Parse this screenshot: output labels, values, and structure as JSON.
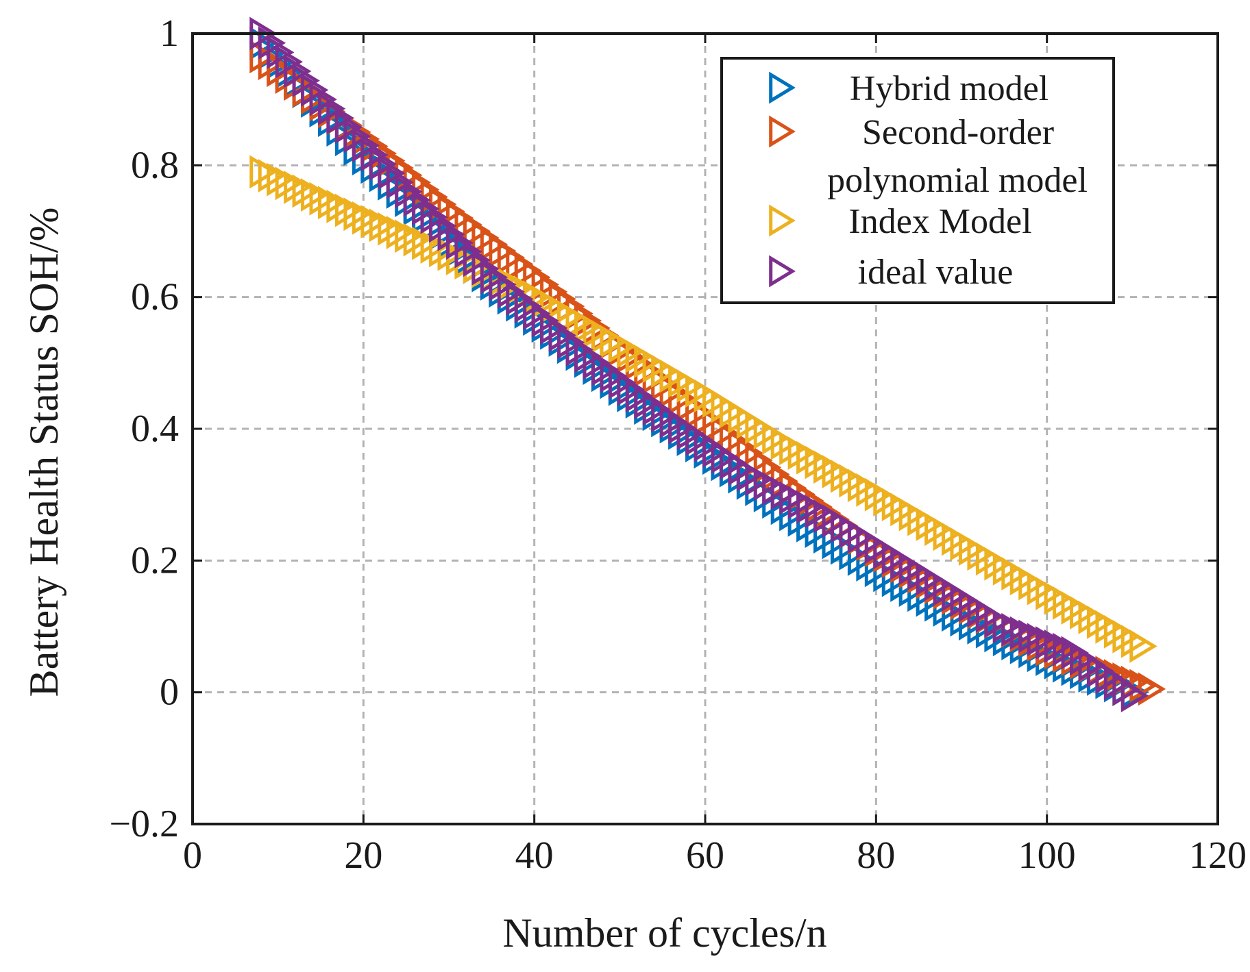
{
  "chart_data": {
    "type": "scatter",
    "title": "",
    "xlabel": "Number of cycles/n",
    "ylabel": "Battery Health Status SOH/%",
    "xlim": [
      0,
      120
    ],
    "ylim": [
      -0.2,
      1
    ],
    "xticks": [
      0,
      20,
      40,
      60,
      80,
      100,
      120
    ],
    "xtick_labels": [
      "0",
      "20",
      "40",
      "60",
      "80",
      "100",
      "120"
    ],
    "yticks": [
      -0.2,
      0,
      0.2,
      0.4,
      0.6,
      0.8,
      1
    ],
    "ytick_labels": [
      "−0.2",
      "0",
      "0.2",
      "0.4",
      "0.6",
      "0.8",
      "1"
    ],
    "grid": true,
    "legend_position": "top-right",
    "marker": "triangle-right",
    "series": [
      {
        "name": "Hybrid model",
        "color": "#0072BD",
        "x_start": 8,
        "x_end": 110,
        "x_step": 1,
        "points": [
          [
            8,
            0.985
          ],
          [
            20,
            0.81
          ],
          [
            35,
            0.62
          ],
          [
            50,
            0.46
          ],
          [
            60,
            0.365
          ],
          [
            70,
            0.27
          ],
          [
            80,
            0.185
          ],
          [
            90,
            0.11
          ],
          [
            100,
            0.05
          ],
          [
            110,
            0.0
          ]
        ]
      },
      {
        "name": "Second-order polynomial model",
        "color": "#D95319",
        "x_start": 8,
        "x_end": 112,
        "x_step": 1,
        "points": [
          [
            8,
            0.965
          ],
          [
            20,
            0.84
          ],
          [
            30,
            0.73
          ],
          [
            40,
            0.63
          ],
          [
            50,
            0.52
          ],
          [
            60,
            0.415
          ],
          [
            70,
            0.31
          ],
          [
            80,
            0.215
          ],
          [
            90,
            0.135
          ],
          [
            100,
            0.065
          ],
          [
            112,
            0.005
          ]
        ]
      },
      {
        "name": "Index Model",
        "color": "#EDB120",
        "x_start": 8,
        "x_end": 111,
        "x_step": 1,
        "points": [
          [
            8,
            0.79
          ],
          [
            20,
            0.72
          ],
          [
            30,
            0.665
          ],
          [
            40,
            0.6
          ],
          [
            50,
            0.525
          ],
          [
            60,
            0.45
          ],
          [
            70,
            0.37
          ],
          [
            80,
            0.3
          ],
          [
            90,
            0.225
          ],
          [
            100,
            0.15
          ],
          [
            111,
            0.07
          ]
        ]
      },
      {
        "name": "ideal value",
        "color": "#7E2F8E",
        "x_start": 8,
        "x_end": 110,
        "x_step": 1,
        "points": [
          [
            8,
            1.0
          ],
          [
            15,
            0.9
          ],
          [
            25,
            0.76
          ],
          [
            35,
            0.63
          ],
          [
            45,
            0.52
          ],
          [
            55,
            0.42
          ],
          [
            65,
            0.33
          ],
          [
            75,
            0.26
          ],
          [
            85,
            0.18
          ],
          [
            95,
            0.1
          ],
          [
            103,
            0.06
          ],
          [
            110,
            -0.005
          ]
        ]
      }
    ],
    "legend_labels": [
      {
        "series": 0,
        "lines": [
          "Hybrid model"
        ]
      },
      {
        "series": 1,
        "lines": [
          "Second-order",
          "polynomial model"
        ]
      },
      {
        "series": 2,
        "lines": [
          "Index Model"
        ]
      },
      {
        "series": 3,
        "lines": [
          "ideal value"
        ]
      }
    ]
  }
}
